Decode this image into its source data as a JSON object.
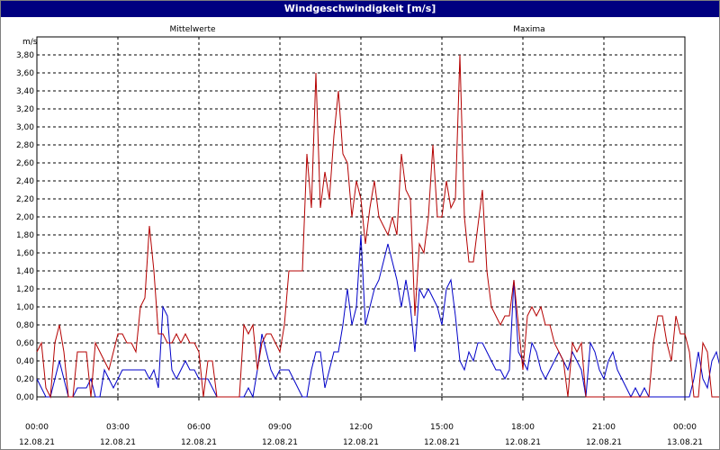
{
  "window": {
    "title": "Windgeschwindigkeit [m/s]"
  },
  "colors": {
    "mean": "#0000c8",
    "max": "#b40000",
    "grid": "#000000",
    "plot_bg": "#ffffff"
  },
  "chart_data": {
    "type": "line",
    "title": "Windgeschwindigkeit [m/s]",
    "ylabel": "m/s",
    "ylim": [
      0,
      4.0
    ],
    "yticks": [
      0.0,
      0.2,
      0.4,
      0.6,
      0.8,
      1.0,
      1.2,
      1.4,
      1.6,
      1.8,
      2.0,
      2.2,
      2.4,
      2.6,
      2.8,
      3.0,
      3.2,
      3.4,
      3.6,
      3.8
    ],
    "ytick_labels": [
      "0,00",
      "0,20",
      "0,40",
      "0,60",
      "0,80",
      "1,00",
      "1,20",
      "1,40",
      "1,60",
      "1,80",
      "2,00",
      "2,20",
      "2,40",
      "2,60",
      "2,80",
      "3,00",
      "3,20",
      "3,40",
      "3,60",
      "3,80"
    ],
    "xlim": [
      "12.08.21 00:00",
      "13.08.21 00:00"
    ],
    "xticks": [
      {
        "time": "00:00",
        "date": "12.08.21"
      },
      {
        "time": "03:00",
        "date": "12.08.21"
      },
      {
        "time": "06:00",
        "date": "12.08.21"
      },
      {
        "time": "09:00",
        "date": "12.08.21"
      },
      {
        "time": "12:00",
        "date": "12.08.21"
      },
      {
        "time": "15:00",
        "date": "12.08.21"
      },
      {
        "time": "18:00",
        "date": "12.08.21"
      },
      {
        "time": "21:00",
        "date": "12.08.21"
      },
      {
        "time": "00:00",
        "date": "13.08.21"
      }
    ],
    "grid": true,
    "x_step_minutes": 10,
    "series": [
      {
        "name": "Mittelwerte",
        "color": "#0000c8",
        "values": [
          0.2,
          0.1,
          0.0,
          0.0,
          0.2,
          0.4,
          0.2,
          0.0,
          0.0,
          0.1,
          0.1,
          0.1,
          0.2,
          0.0,
          0.0,
          0.3,
          0.2,
          0.1,
          0.2,
          0.3,
          0.3,
          0.3,
          0.3,
          0.3,
          0.3,
          0.2,
          0.3,
          0.1,
          1.0,
          0.9,
          0.3,
          0.2,
          0.3,
          0.4,
          0.3,
          0.3,
          0.2,
          0.2,
          0.2,
          0.1,
          0.0,
          0.0,
          0.0,
          0.0,
          0.0,
          0.0,
          0.0,
          0.1,
          0.0,
          0.3,
          0.7,
          0.5,
          0.3,
          0.2,
          0.3,
          0.3,
          0.3,
          0.2,
          0.1,
          0.0,
          0.0,
          0.3,
          0.5,
          0.5,
          0.1,
          0.3,
          0.5,
          0.5,
          0.8,
          1.2,
          0.8,
          1.0,
          1.8,
          0.8,
          1.0,
          1.2,
          1.3,
          1.5,
          1.7,
          1.5,
          1.3,
          1.0,
          1.3,
          1.0,
          0.5,
          1.2,
          1.1,
          1.2,
          1.1,
          1.0,
          0.8,
          1.2,
          1.3,
          0.9,
          0.4,
          0.3,
          0.5,
          0.4,
          0.6,
          0.6,
          0.5,
          0.4,
          0.3,
          0.3,
          0.2,
          0.3,
          1.3,
          0.5,
          0.4,
          0.3,
          0.6,
          0.5,
          0.3,
          0.2,
          0.3,
          0.4,
          0.5,
          0.4,
          0.3,
          0.5,
          0.4,
          0.3,
          0.0,
          0.6,
          0.5,
          0.3,
          0.2,
          0.4,
          0.5,
          0.3,
          0.2,
          0.1,
          0.0,
          0.1,
          0.0,
          0.1,
          0.0,
          0.0,
          0.0,
          0.0,
          0.0,
          0.0,
          0.0,
          0.0,
          0.0,
          0.0,
          0.2,
          0.5,
          0.2,
          0.1,
          0.4,
          0.5,
          0.3,
          0.0,
          0.1,
          0.2,
          0.3,
          0.4,
          0.0,
          0.1,
          0.0
        ]
      },
      {
        "name": "Maxima",
        "color": "#b40000",
        "values": [
          0.5,
          0.6,
          0.1,
          0.0,
          0.6,
          0.8,
          0.5,
          0.0,
          0.0,
          0.5,
          0.5,
          0.5,
          0.0,
          0.6,
          0.5,
          0.4,
          0.3,
          0.5,
          0.7,
          0.7,
          0.6,
          0.6,
          0.5,
          1.0,
          1.1,
          1.9,
          1.4,
          0.7,
          0.7,
          0.6,
          0.6,
          0.7,
          0.6,
          0.7,
          0.6,
          0.6,
          0.5,
          0.0,
          0.4,
          0.4,
          0.0,
          0.0,
          0.0,
          0.0,
          0.0,
          0.0,
          0.8,
          0.7,
          0.8,
          0.3,
          0.6,
          0.7,
          0.7,
          0.6,
          0.5,
          0.8,
          1.4,
          1.4,
          1.4,
          1.4,
          2.7,
          2.1,
          3.6,
          2.1,
          2.5,
          2.2,
          2.9,
          3.4,
          2.7,
          2.6,
          2.0,
          2.4,
          2.2,
          1.7,
          2.1,
          2.4,
          2.0,
          1.9,
          1.8,
          2.0,
          1.8,
          2.7,
          2.3,
          2.2,
          0.9,
          1.7,
          1.6,
          2.0,
          2.8,
          2.0,
          2.0,
          2.4,
          2.1,
          2.2,
          3.8,
          2.0,
          1.5,
          1.5,
          1.9,
          2.3,
          1.4,
          1.0,
          0.9,
          0.8,
          0.9,
          0.9,
          1.3,
          0.8,
          0.3,
          0.9,
          1.0,
          0.9,
          1.0,
          0.8,
          0.8,
          0.6,
          0.5,
          0.4,
          0.0,
          0.6,
          0.5,
          0.6,
          0.0,
          0.0,
          0.0,
          0.0,
          0.0,
          0.0,
          0.0,
          0.0,
          0.0,
          0.0,
          0.0,
          0.0,
          0.0,
          0.0,
          0.0,
          0.6,
          0.9,
          0.9,
          0.6,
          0.4,
          0.9,
          0.7,
          0.7,
          0.5,
          0.0,
          0.0,
          0.6,
          0.5,
          0.0,
          0.0,
          0.0,
          0.0,
          0.0,
          0.0,
          0.0,
          0.0
        ]
      }
    ]
  }
}
